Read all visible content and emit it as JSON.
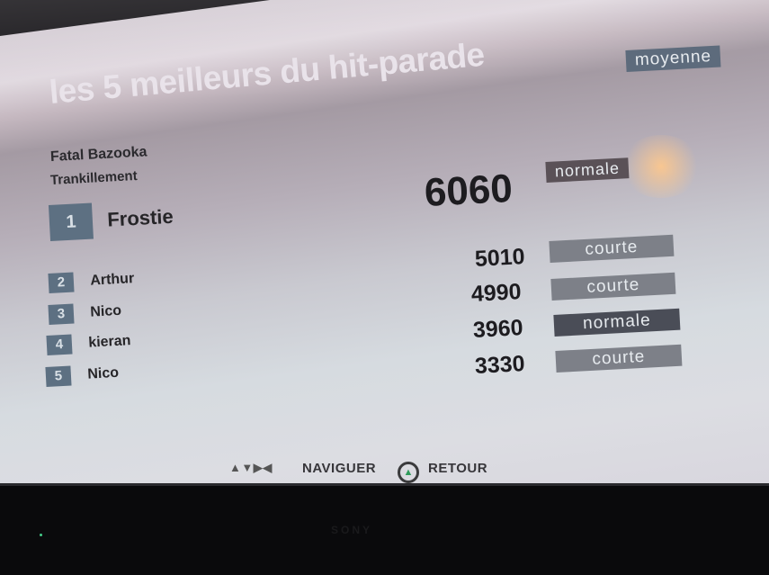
{
  "header": {
    "title": "les 5 meilleurs du hit-parade",
    "difficulty": "moyenne"
  },
  "song": {
    "artist": "Fatal Bazooka",
    "title": "Trankillement"
  },
  "scores": [
    {
      "rank": "1",
      "name": "Frostie",
      "score": "6060",
      "length": "normale"
    },
    {
      "rank": "2",
      "name": "Arthur",
      "score": "5010",
      "length": "courte"
    },
    {
      "rank": "3",
      "name": "Nico",
      "score": "4990",
      "length": "courte"
    },
    {
      "rank": "4",
      "name": "kieran",
      "score": "3960",
      "length": "normale"
    },
    {
      "rank": "5",
      "name": "Nico",
      "score": "3330",
      "length": "courte"
    }
  ],
  "footer": {
    "navigate_icon": "dpad-arrows-icon",
    "navigate": "NAVIGUER",
    "back_icon": "triangle-button-icon",
    "back": "RETOUR"
  },
  "tv": {
    "brand": "SONY"
  },
  "colors": {
    "tag": "#5d6b7c",
    "rank_badge": "#5d7082"
  }
}
